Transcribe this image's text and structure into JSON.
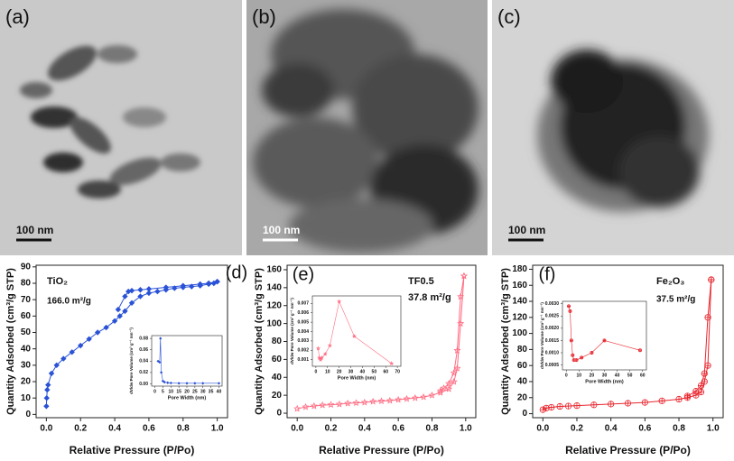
{
  "panels": [
    {
      "label": "(a)",
      "scale_bar": "100 nm"
    },
    {
      "label": "(b)",
      "scale_bar": "100 nm"
    },
    {
      "label": "(c)",
      "scale_bar": "100 nm"
    }
  ],
  "chart_data": [
    {
      "type": "line",
      "xlabel": "Relative Pressure (P/Po)",
      "ylabel": "Quantity Adsorbed (cm³/g STP)",
      "annotations": [
        "(d)",
        "TiO₂",
        "166.0 m²/g"
      ],
      "xlim": [
        -0.06,
        1.06
      ],
      "ylim": [
        -2,
        91
      ],
      "xticks": [
        {
          "value": 0,
          "label": "0.0"
        },
        0.2,
        0.4,
        0.6,
        0.8,
        {
          "value": 1,
          "label": "1.0"
        }
      ],
      "yticks": [
        0,
        10,
        20,
        30,
        40,
        50,
        60,
        70,
        80,
        90
      ],
      "series": [
        {
          "color": "#2a52d6",
          "marker": "diamond",
          "x": [
            0,
            0.002,
            0.005,
            0.01,
            0.03,
            0.06,
            0.1,
            0.15,
            0.2,
            0.25,
            0.3,
            0.35,
            0.4,
            0.43,
            0.46,
            0.5,
            0.55,
            0.6,
            0.65,
            0.7,
            0.75,
            0.8,
            0.85,
            0.9,
            0.95,
            0.98,
            1.0
          ],
          "values": [
            5,
            10,
            15,
            18,
            25,
            30,
            34,
            38,
            42,
            46,
            50,
            53,
            57,
            60,
            63,
            68,
            72,
            74,
            75,
            76,
            77,
            77.5,
            78,
            78.5,
            79.5,
            80,
            81
          ]
        },
        {
          "color": "#2a52d6",
          "marker": "diamond",
          "x": [
            1.0,
            0.95,
            0.9,
            0.8,
            0.7,
            0.6,
            0.55,
            0.5,
            0.48,
            0.46,
            0.42
          ],
          "values": [
            81,
            80,
            79.5,
            78.5,
            77.5,
            76.5,
            76,
            75.5,
            75,
            72,
            64
          ]
        }
      ]
    },
    {
      "type": "line",
      "xlabel": "Pore Width (nm)",
      "ylabel": "dV/dw Pore Volume (cm³ g⁻¹ nm⁻¹)",
      "xlim": [
        -2,
        42
      ],
      "ylim": [
        -0.004,
        0.085
      ],
      "xticks": [
        0,
        5,
        10,
        15,
        20,
        25,
        30,
        35,
        40
      ],
      "yticks": [
        {
          "value": 0,
          "label": "0.00"
        },
        0.02,
        0.04,
        0.06,
        0.08
      ],
      "series": [
        {
          "color": "#2a52d6",
          "marker": "diamond",
          "x": [
            2,
            3,
            3.5,
            4,
            5,
            6,
            8,
            10,
            15,
            20,
            25,
            30,
            40
          ],
          "values": [
            0.04,
            0.038,
            0.08,
            0.02,
            0.005,
            0.003,
            0.002,
            0.0015,
            0.001,
            0.001,
            0.001,
            0.001,
            0.001
          ]
        }
      ]
    },
    {
      "type": "line",
      "xlabel": "Relative Pressure (P/Po)",
      "ylabel": "Quantity Adsorbed (cm³/g STP)",
      "annotations": [
        "(e)",
        "TF0.5",
        "37.8 m²/g"
      ],
      "xlim": [
        -0.06,
        1.06
      ],
      "ylim": [
        -5,
        165
      ],
      "xticks": [
        {
          "value": 0,
          "label": "0.0"
        },
        0.2,
        0.4,
        0.6,
        0.8,
        {
          "value": 1,
          "label": "1.0"
        }
      ],
      "yticks": [
        0,
        20,
        40,
        60,
        80,
        100,
        120,
        140,
        160
      ],
      "series": [
        {
          "color": "#ff6b81",
          "marker": "star",
          "x": [
            0,
            0.05,
            0.1,
            0.15,
            0.2,
            0.25,
            0.3,
            0.35,
            0.4,
            0.45,
            0.5,
            0.55,
            0.6,
            0.65,
            0.7,
            0.75,
            0.8,
            0.85,
            0.9,
            0.93,
            0.95,
            0.97,
            0.99
          ],
          "values": [
            5,
            7,
            8,
            9,
            9.5,
            10,
            11,
            11.5,
            12,
            13,
            13.5,
            14,
            15,
            16,
            17,
            18,
            20,
            23,
            27,
            35,
            50,
            100,
            153
          ]
        },
        {
          "color": "#ff6b81",
          "marker": "star",
          "x": [
            0.99,
            0.97,
            0.95,
            0.93,
            0.9,
            0.87,
            0.85
          ],
          "values": [
            153,
            130,
            70,
            45,
            33,
            28,
            25
          ]
        }
      ]
    },
    {
      "type": "line",
      "xlabel": "Pore Width (nm)",
      "ylabel": "dV/dw Pore Volume (cm³ g⁻¹ nm⁻¹)",
      "xlim": [
        -3,
        73
      ],
      "ylim": [
        0.0003,
        0.0078
      ],
      "xticks": [
        0,
        10,
        20,
        30,
        40,
        50,
        60,
        70
      ],
      "yticks": [
        0.001,
        0.002,
        0.003,
        0.004,
        0.005,
        0.006,
        0.007
      ],
      "series": [
        {
          "color": "#ff6b81",
          "marker": "star",
          "x": [
            2,
            3,
            4,
            5,
            8,
            12,
            20,
            33,
            65
          ],
          "values": [
            0.0022,
            0.0012,
            0.001,
            0.0012,
            0.0016,
            0.0025,
            0.0072,
            0.0035,
            0.0006
          ]
        }
      ]
    },
    {
      "type": "line",
      "xlabel": "Relative Pressure (P/Po)",
      "ylabel": "Quantity Adsorbed (cm³/g STP)",
      "annotations": [
        "(f)",
        "Fe₂O₃",
        "37.5 m²/g"
      ],
      "xlim": [
        -0.06,
        1.06
      ],
      "ylim": [
        -5,
        185
      ],
      "xticks": [
        {
          "value": 0,
          "label": "0.0"
        },
        0.2,
        0.4,
        0.6,
        0.8,
        {
          "value": 1,
          "label": "1.0"
        }
      ],
      "yticks": [
        0,
        20,
        40,
        60,
        80,
        100,
        120,
        140,
        160,
        180
      ],
      "series": [
        {
          "color": "#e8262e",
          "marker": "circle-plus",
          "x": [
            0,
            0.02,
            0.05,
            0.1,
            0.15,
            0.2,
            0.3,
            0.4,
            0.5,
            0.6,
            0.7,
            0.8,
            0.85,
            0.9,
            0.93,
            0.95,
            0.97,
            0.99
          ],
          "values": [
            5,
            7,
            8,
            9,
            9.5,
            10,
            11,
            12,
            13,
            14,
            16,
            18,
            20,
            23,
            27,
            40,
            60,
            167
          ]
        },
        {
          "color": "#e8262e",
          "marker": "circle-plus",
          "x": [
            0.99,
            0.97,
            0.95,
            0.93,
            0.9,
            0.85
          ],
          "values": [
            167,
            120,
            50,
            35,
            28,
            22
          ]
        }
      ]
    },
    {
      "type": "line",
      "xlabel": "Pore Width (nm)",
      "ylabel": "dV/dw Pore Volume (cm³ g⁻¹ nm⁻¹)",
      "xlim": [
        -3,
        63
      ],
      "ylim": [
        0.0003,
        0.0031
      ],
      "xticks": [
        0,
        10,
        20,
        30,
        40,
        50,
        60
      ],
      "yticks": [
        0.0005,
        {
          "value": 0.001,
          "label": "0.0010"
        },
        0.0015,
        {
          "value": 0.002,
          "label": "0.0020"
        },
        0.0025,
        {
          "value": 0.003,
          "label": "0.0030"
        }
      ],
      "series": [
        {
          "color": "#e8262e",
          "marker": "circle-plus",
          "x": [
            2,
            3,
            4,
            5,
            6,
            8,
            12,
            20,
            30,
            58
          ],
          "values": [
            0.0029,
            0.0027,
            0.0015,
            0.0009,
            0.0007,
            0.0007,
            0.0008,
            0.001,
            0.0015,
            0.0011
          ]
        }
      ]
    }
  ]
}
